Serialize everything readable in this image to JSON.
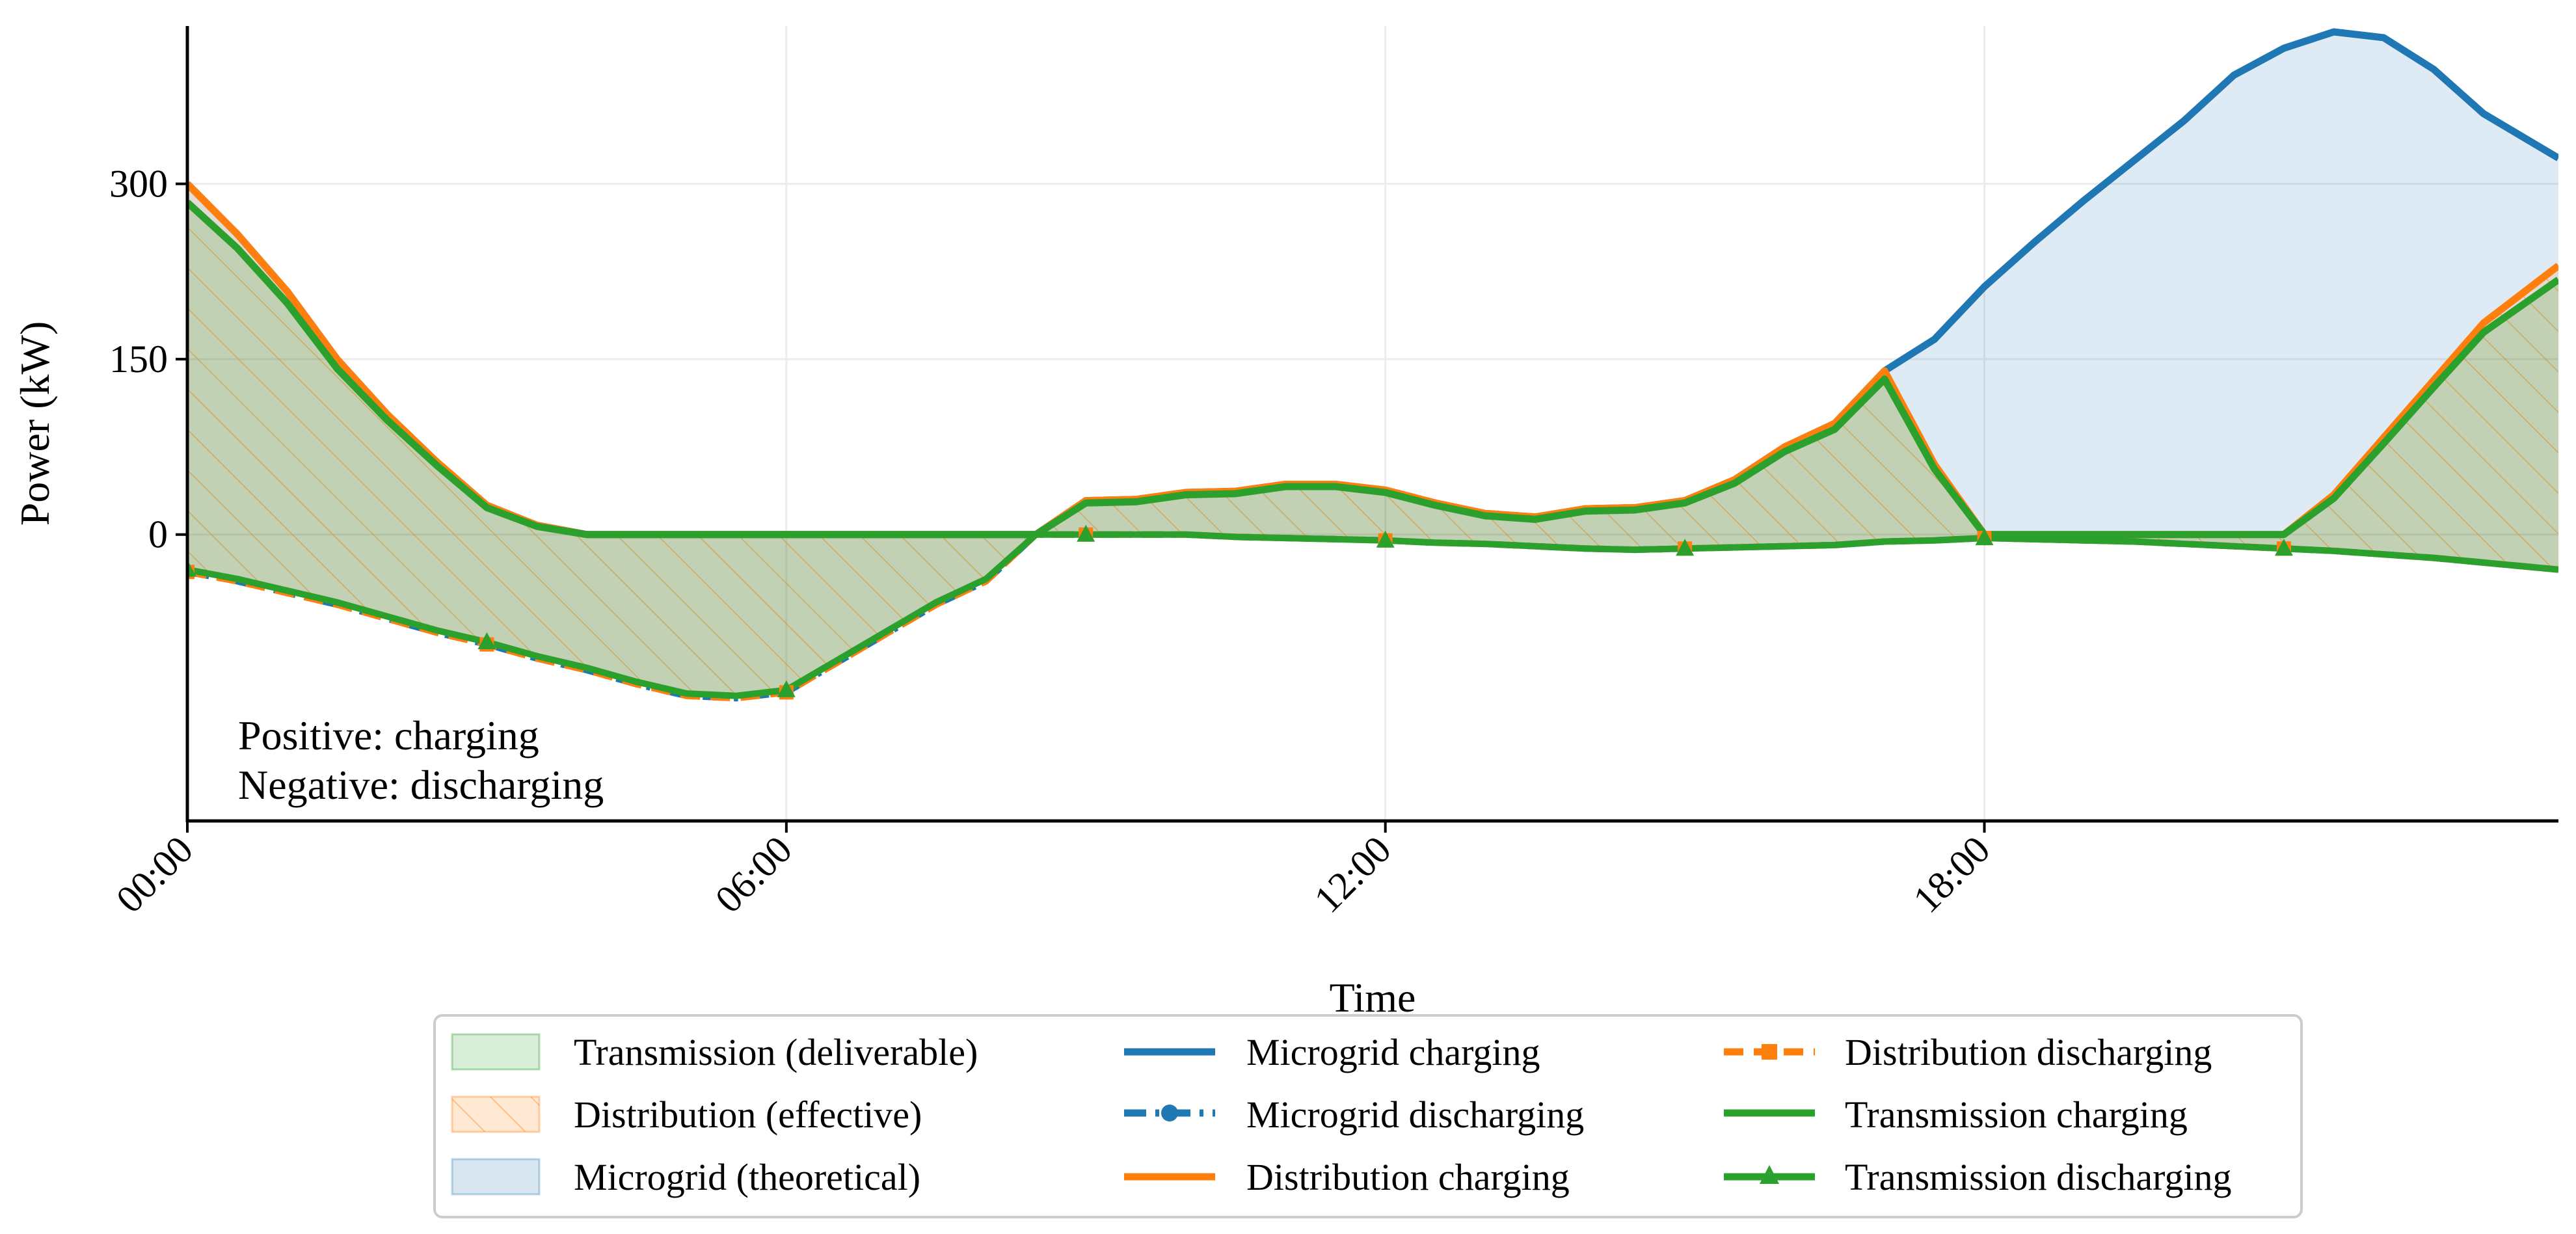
{
  "chart_data": {
    "type": "area",
    "xlabel": "Time",
    "ylabel": "Power (kW)",
    "xlim": [
      0,
      23.75
    ],
    "ylim": [
      -245,
      435
    ],
    "x_ticks": [
      {
        "value": 0,
        "label": "00:00"
      },
      {
        "value": 6,
        "label": "06:00"
      },
      {
        "value": 12,
        "label": "12:00"
      },
      {
        "value": 18,
        "label": "18:00"
      }
    ],
    "y_ticks": [
      {
        "value": 0,
        "label": "0"
      },
      {
        "value": 150,
        "label": "150"
      },
      {
        "value": 300,
        "label": "300"
      }
    ],
    "grid": true,
    "legend_position": "bottom-center",
    "annotations": [
      "Positive: charging",
      "Negative: discharging"
    ],
    "areas": [
      {
        "name": "Transmission (deliverable)",
        "color": "#2ca02c"
      },
      {
        "name": "Distribution (effective)",
        "color": "#ff7f0e",
        "hatch": true
      },
      {
        "name": "Microgrid (theoretical)",
        "color": "#1f77b4"
      }
    ],
    "series": [
      {
        "name": "Microgrid charging",
        "color": "#1f77b4",
        "style": "solid",
        "x": [
          0,
          0.5,
          1,
          1.5,
          2,
          2.5,
          3,
          3.5,
          4,
          4.5,
          5,
          5.5,
          6,
          6.5,
          7,
          7.5,
          8,
          8.5,
          9,
          9.5,
          10,
          10.5,
          11,
          11.5,
          12,
          12.5,
          13,
          13.5,
          14,
          14.5,
          15,
          15.5,
          16,
          16.5,
          17,
          17.5,
          18,
          18.5,
          19,
          19.5,
          20,
          20.5,
          21,
          21.5,
          22,
          22.5,
          23,
          23.75
        ],
        "values": [
          300,
          257,
          208,
          150,
          103,
          62,
          25,
          8,
          0,
          0,
          0,
          0,
          0,
          0,
          0,
          0,
          0,
          0,
          29,
          30,
          36,
          37,
          43,
          43,
          38,
          27,
          18,
          15,
          22,
          23,
          29,
          47,
          75,
          95,
          140,
          167,
          212,
          250,
          286,
          320,
          354,
          393,
          416,
          430,
          425,
          398,
          360,
          322
        ]
      },
      {
        "name": "Microgrid discharging",
        "color": "#1f77b4",
        "style": "dash-dot",
        "x": [
          0,
          0.5,
          1,
          1.5,
          2,
          2.5,
          3,
          3.5,
          4,
          4.5,
          5,
          5.5,
          6,
          6.5,
          7,
          7.5,
          8,
          8.5,
          9,
          9.5,
          10,
          10.5,
          11,
          11.5,
          12,
          12.5,
          13,
          13.5,
          14,
          14.5,
          15,
          15.5,
          16,
          16.5,
          17,
          17.5,
          18,
          18.5,
          19,
          19.5,
          20,
          20.5,
          21,
          21.5,
          22,
          22.5,
          23,
          23.75
        ],
        "values": [
          -32,
          -40,
          -50,
          -60,
          -72,
          -84,
          -94,
          -106,
          -116,
          -128,
          -138,
          -140,
          -135,
          -110,
          -85,
          -60,
          -40,
          0,
          0,
          0,
          0,
          -2,
          -3,
          -4,
          -5,
          -7,
          -8,
          -10,
          -12,
          -13,
          -12,
          -11,
          -10,
          -9,
          -6,
          -5,
          -3,
          -4,
          -5,
          -6,
          -8,
          -10,
          -12,
          -14,
          -17,
          -20,
          -24,
          -30
        ]
      },
      {
        "name": "Distribution charging",
        "color": "#ff7f0e",
        "style": "solid",
        "x": [
          0,
          0.5,
          1,
          1.5,
          2,
          2.5,
          3,
          3.5,
          4,
          4.5,
          5,
          5.5,
          6,
          6.5,
          7,
          7.5,
          8,
          8.5,
          9,
          9.5,
          10,
          10.5,
          11,
          11.5,
          12,
          12.5,
          13,
          13.5,
          14,
          14.5,
          15,
          15.5,
          16,
          16.5,
          17,
          17.5,
          18,
          18.5,
          19,
          19.5,
          20,
          20.5,
          21,
          21.5,
          22,
          22.5,
          23,
          23.75
        ],
        "values": [
          300,
          257,
          208,
          150,
          103,
          62,
          25,
          8,
          0,
          0,
          0,
          0,
          0,
          0,
          0,
          0,
          0,
          0,
          29,
          30,
          36,
          37,
          43,
          43,
          38,
          27,
          18,
          15,
          22,
          23,
          29,
          47,
          75,
          95,
          140,
          60,
          0,
          0,
          0,
          0,
          0,
          0,
          0,
          34,
          83,
          132,
          181,
          230
        ]
      },
      {
        "name": "Distribution discharging",
        "color": "#ff7f0e",
        "style": "dashed-square",
        "x": [
          0,
          0.5,
          1,
          1.5,
          2,
          2.5,
          3,
          3.5,
          4,
          4.5,
          5,
          5.5,
          6,
          6.5,
          7,
          7.5,
          8,
          8.5,
          9,
          9.5,
          10,
          10.5,
          11,
          11.5,
          12,
          12.5,
          13,
          13.5,
          14,
          14.5,
          15,
          15.5,
          16,
          16.5,
          17,
          17.5,
          18,
          18.5,
          19,
          19.5,
          20,
          20.5,
          21,
          21.5,
          22,
          22.5,
          23,
          23.75
        ],
        "values": [
          -32,
          -40,
          -50,
          -60,
          -72,
          -84,
          -94,
          -106,
          -116,
          -128,
          -138,
          -140,
          -135,
          -110,
          -85,
          -60,
          -40,
          0,
          0,
          0,
          0,
          -2,
          -3,
          -4,
          -5,
          -7,
          -8,
          -10,
          -12,
          -13,
          -12,
          -11,
          -10,
          -9,
          -6,
          -5,
          -3,
          -4,
          -5,
          -6,
          -8,
          -10,
          -12,
          -14,
          -17,
          -20,
          -24,
          -30
        ]
      },
      {
        "name": "Transmission charging",
        "color": "#2ca02c",
        "style": "solid",
        "x": [
          0,
          0.5,
          1,
          1.5,
          2,
          2.5,
          3,
          3.5,
          4,
          4.5,
          5,
          5.5,
          6,
          6.5,
          7,
          7.5,
          8,
          8.5,
          9,
          9.5,
          10,
          10.5,
          11,
          11.5,
          12,
          12.5,
          13,
          13.5,
          14,
          14.5,
          15,
          15.5,
          16,
          16.5,
          17,
          17.5,
          18,
          18.5,
          19,
          19.5,
          20,
          20.5,
          21,
          21.5,
          22,
          22.5,
          23,
          23.75
        ],
        "values": [
          284,
          245,
          198,
          142,
          98,
          59,
          23,
          7,
          0,
          0,
          0,
          0,
          0,
          0,
          0,
          0,
          0,
          0,
          27,
          28,
          34,
          35,
          41,
          41,
          36,
          25,
          16,
          13,
          20,
          21,
          27,
          44,
          71,
          90,
          133,
          56,
          0,
          0,
          0,
          0,
          0,
          0,
          0,
          31,
          78,
          126,
          173,
          218
        ]
      },
      {
        "name": "Transmission discharging",
        "color": "#2ca02c",
        "style": "solid-triangle",
        "x": [
          0,
          0.5,
          1,
          1.5,
          2,
          2.5,
          3,
          3.5,
          4,
          4.5,
          5,
          5.5,
          6,
          6.5,
          7,
          7.5,
          8,
          8.5,
          9,
          9.5,
          10,
          10.5,
          11,
          11.5,
          12,
          12.5,
          13,
          13.5,
          14,
          14.5,
          15,
          15.5,
          16,
          16.5,
          17,
          17.5,
          18,
          18.5,
          19,
          19.5,
          20,
          20.5,
          21,
          21.5,
          22,
          22.5,
          23,
          23.75
        ],
        "values": [
          -30,
          -38,
          -48,
          -58,
          -70,
          -82,
          -92,
          -104,
          -114,
          -126,
          -136,
          -138,
          -133,
          -108,
          -83,
          -58,
          -38,
          0,
          0,
          0,
          0,
          -2,
          -3,
          -4,
          -5,
          -7,
          -8,
          -10,
          -12,
          -13,
          -12,
          -11,
          -10,
          -9,
          -6,
          -5,
          -3,
          -4,
          -5,
          -6,
          -8,
          -10,
          -12,
          -14,
          -17,
          -20,
          -24,
          -30
        ]
      }
    ]
  }
}
